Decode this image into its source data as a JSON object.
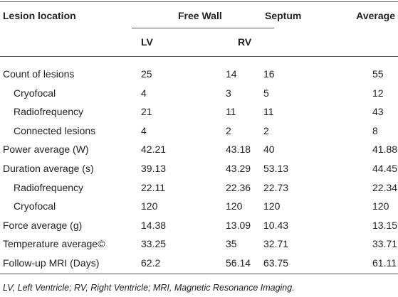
{
  "table": {
    "header": [
      "Lesion location",
      "Free Wall",
      "Septum",
      "Average"
    ],
    "subheader": [
      "LV",
      "RV"
    ],
    "rows": [
      [
        "Count of lesions",
        "25",
        "14",
        "16",
        "55"
      ],
      [
        "Cryofocal",
        "4",
        "3",
        "5",
        "12"
      ],
      [
        "Radiofrequency",
        "21",
        "11",
        "11",
        "43"
      ],
      [
        "Connected lesions",
        "4",
        "2",
        "2",
        "8"
      ],
      [
        "Power average (W)",
        "42.21",
        "43.18",
        "40",
        "41.88"
      ],
      [
        "Duration average (s)",
        "39.13",
        "43.29",
        "53.13",
        "44.45"
      ],
      [
        "Radiofrequency",
        "22.11",
        "22.36",
        "22.73",
        "22.34"
      ],
      [
        "Cryofocal",
        "120",
        "120",
        "120",
        "120"
      ],
      [
        "Force average (g)",
        "14.38",
        "13.09",
        "10.43",
        "13.15"
      ],
      [
        "Temperature average©",
        "33.25",
        "35",
        "32.71",
        "33.71"
      ],
      [
        "Follow-up MRI (Days)",
        "62.2",
        "56.14",
        "63.75",
        "61.11"
      ]
    ],
    "footnote": "LV, Left Ventricle; RV, Right Ventricle; MRI, Magnetic Resonance Imaging."
  }
}
